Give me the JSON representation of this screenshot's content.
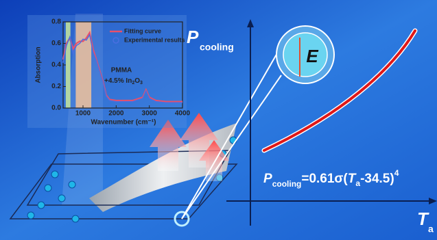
{
  "chart_data": {
    "type": "line",
    "x_label": "Wavenumber (cm⁻¹)",
    "y_label": "Absorption",
    "x": [
      400,
      500,
      600,
      700,
      800,
      900,
      1000,
      1100,
      1200,
      1300,
      1400,
      1500,
      1600,
      1700,
      1800,
      2000,
      2500,
      2800,
      2900,
      3000,
      3200,
      3500,
      4000
    ],
    "series": [
      {
        "name": "Fitting curve",
        "color": "#e8506a",
        "values": [
          0.45,
          0.6,
          0.65,
          0.55,
          0.6,
          0.62,
          0.62,
          0.65,
          0.7,
          0.55,
          0.45,
          0.35,
          0.25,
          0.12,
          0.08,
          0.07,
          0.07,
          0.1,
          0.17,
          0.1,
          0.07,
          0.06,
          0.06
        ]
      },
      {
        "name": "Experimental results",
        "color": "#4a6fe0",
        "values": [
          0.42,
          0.58,
          0.66,
          0.5,
          0.58,
          0.6,
          0.64,
          0.63,
          0.68,
          0.52,
          0.44,
          0.34,
          0.24,
          0.11,
          0.07,
          0.06,
          0.06,
          0.09,
          0.16,
          0.09,
          0.06,
          0.05,
          0.05
        ]
      }
    ],
    "bands": [
      {
        "range": [
          480,
          620
        ],
        "color": "#c9e89a"
      },
      {
        "range": [
          780,
          1250
        ],
        "color": "#f2c29a"
      }
    ],
    "xlim": [
      400,
      4000
    ],
    "ylim": [
      0,
      0.8
    ],
    "xticks": [
      1000,
      2000,
      3000,
      4000
    ],
    "yticks": [
      {
        "value": 0,
        "label": "0.0"
      },
      {
        "value": 0.2,
        "label": "0.2"
      },
      {
        "value": 0.4,
        "label": "0.4"
      },
      {
        "value": 0.6,
        "label": "0.6"
      },
      {
        "value": 0.8,
        "label": "0.8"
      }
    ],
    "annotation": {
      "line1": "PMMA",
      "line2": "+4.5% In",
      "sub1": "2",
      "mid": "O",
      "sub2": "3"
    }
  },
  "scene": {
    "axis_y": {
      "main": "P",
      "sub": "cooling"
    },
    "axis_x": {
      "main": "T",
      "sub": "a"
    },
    "field": "E",
    "formula": {
      "p": "P",
      "p_sub": "cooling",
      "mid": "=0.61σ(",
      "t": "T",
      "t_sub": "a",
      "end": "-34.5)",
      "exp": "4"
    }
  }
}
